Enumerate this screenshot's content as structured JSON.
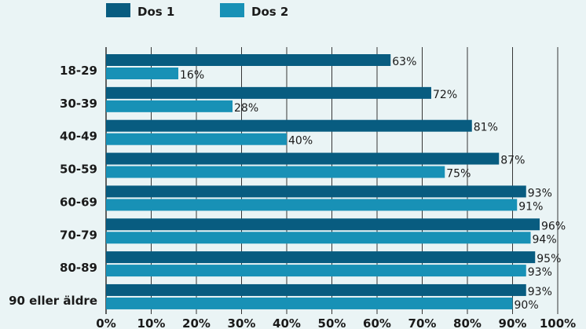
{
  "chart_data": {
    "type": "bar",
    "orientation": "horizontal",
    "categories": [
      "18-29",
      "30-39",
      "40-49",
      "50-59",
      "60-69",
      "70-79",
      "80-89",
      "90 eller äldre"
    ],
    "series": [
      {
        "name": "Dos 1",
        "values": [
          63,
          72,
          81,
          87,
          93,
          96,
          95,
          93
        ],
        "labels": [
          "63%",
          "72%",
          "81%",
          "87%",
          "93%",
          "96%",
          "95%",
          "93%"
        ],
        "color": "#085c80"
      },
      {
        "name": "Dos 2",
        "values": [
          16,
          28,
          40,
          75,
          91,
          94,
          93,
          90
        ],
        "labels": [
          "16%",
          "28%",
          "40%",
          "75%",
          "91%",
          "94%",
          "93%",
          "90%"
        ],
        "color": "#1891b6"
      }
    ],
    "xlim": [
      0,
      100
    ],
    "xticks": [
      "0%",
      "10%",
      "20%",
      "30%",
      "40%",
      "50%",
      "60%",
      "70%",
      "80%",
      "90%",
      "100%"
    ],
    "grid": true,
    "legend": "top-left"
  },
  "colors": {
    "background": "#eaf4f5",
    "grid": "#222222",
    "label_text": "#1a1a1a"
  }
}
